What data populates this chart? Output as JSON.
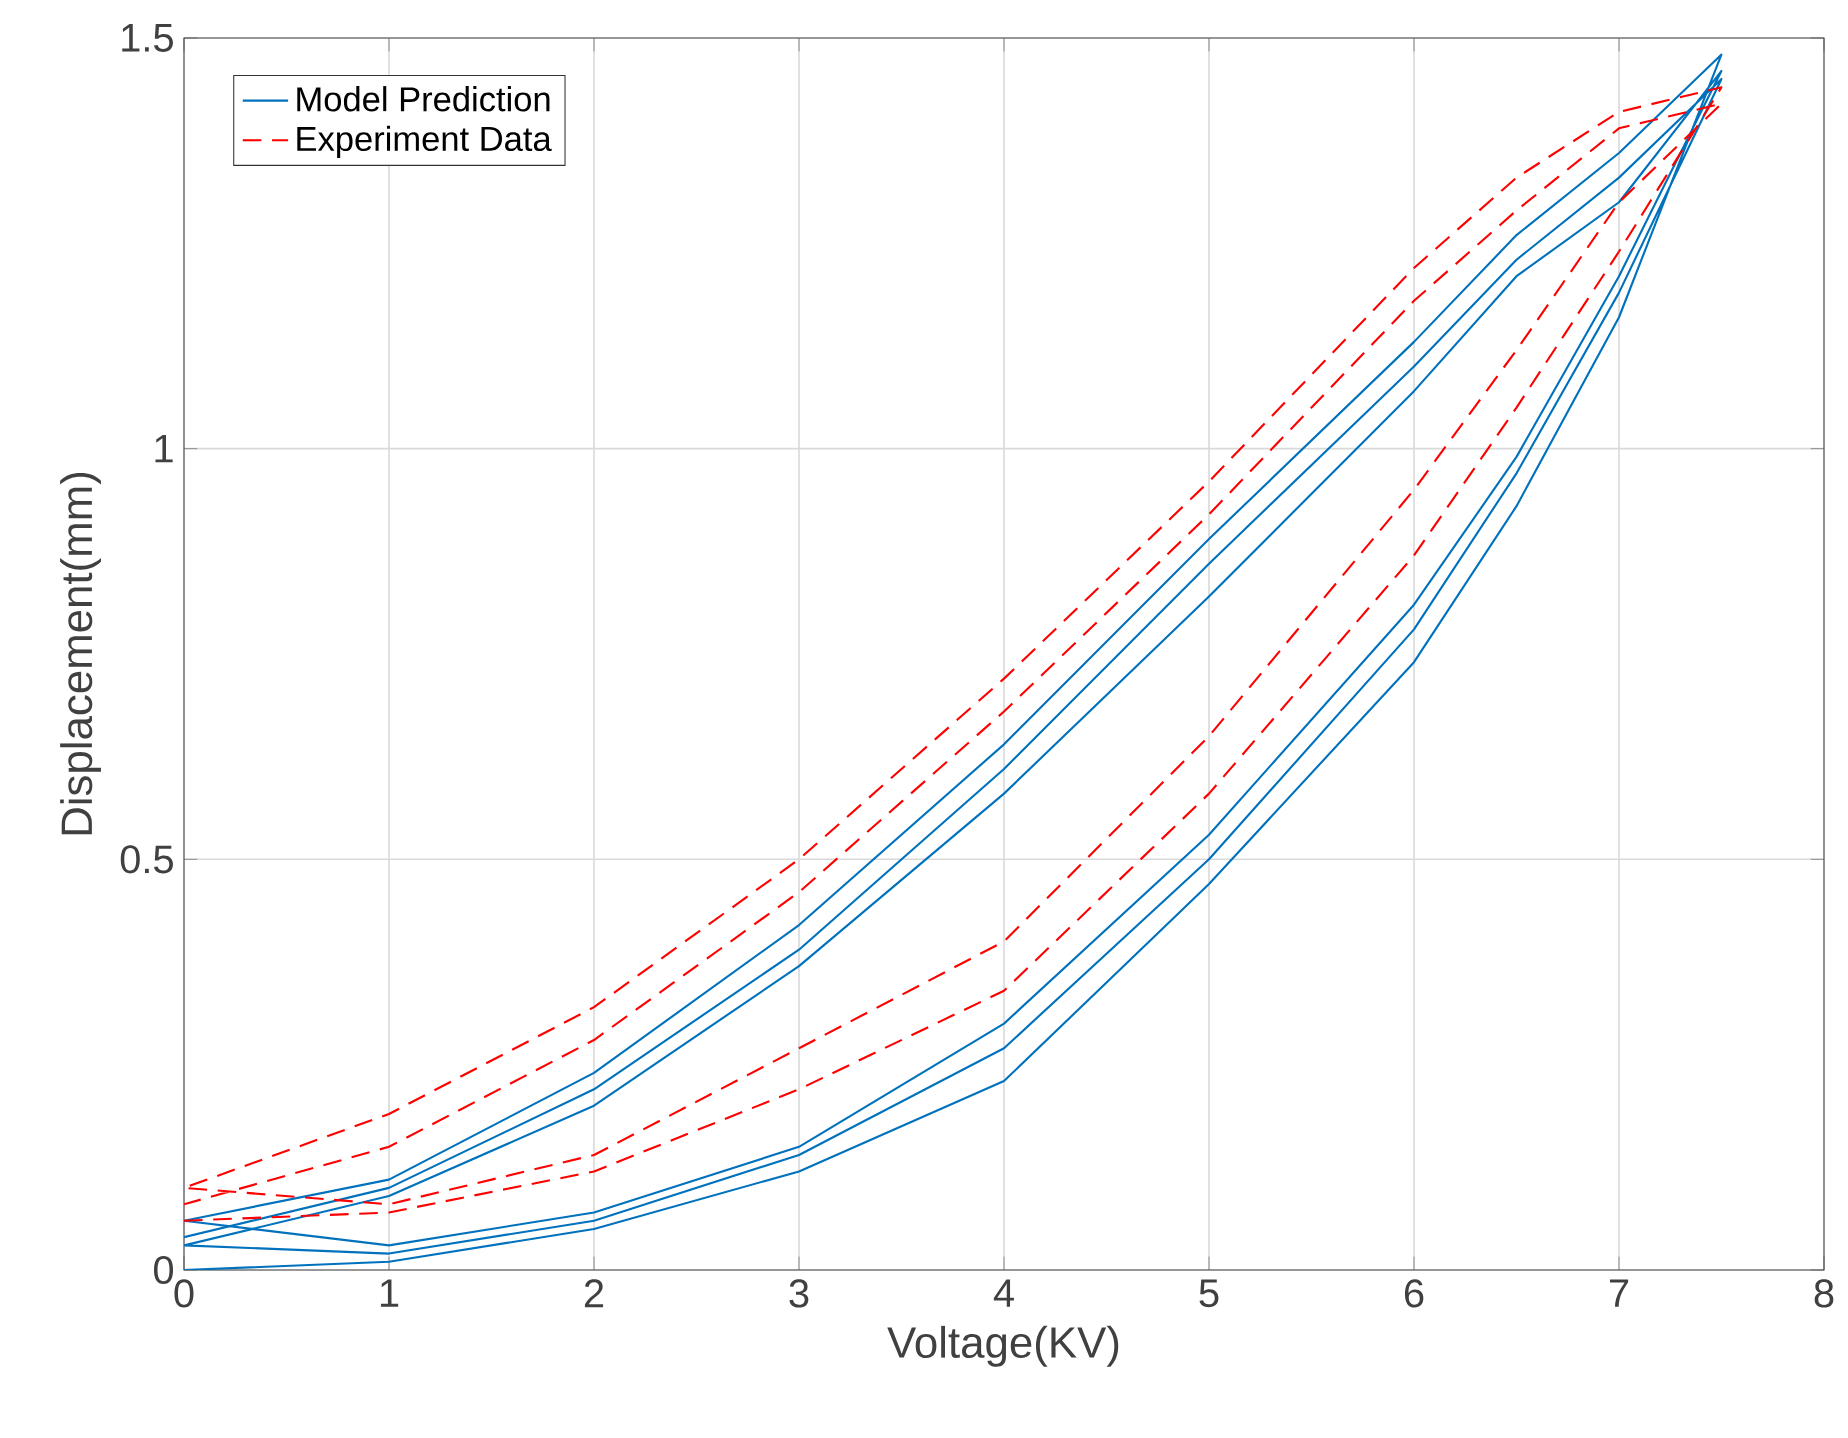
{
  "chart_data": {
    "type": "line",
    "xlabel": "Voltage(KV)",
    "ylabel": "Displacement(mm)",
    "xlim": [
      0,
      8
    ],
    "ylim": [
      0,
      1.5
    ],
    "xticks": [
      0,
      1,
      2,
      3,
      4,
      5,
      6,
      7,
      8
    ],
    "yticks": [
      0,
      0.5,
      1,
      1.5
    ],
    "grid": true,
    "legend": "top left",
    "series": [
      {
        "name": "Model Prediction",
        "color": "#0072bd",
        "line_style": "solid",
        "x": [
          0,
          1,
          2,
          3,
          4,
          5,
          6,
          6.5,
          7,
          7.5,
          7,
          6.5,
          6,
          5,
          4,
          3,
          2,
          1,
          0,
          1,
          2,
          3,
          4,
          5,
          6,
          6.5,
          7,
          7.5,
          7,
          6.5,
          6,
          5,
          4,
          3,
          2,
          1,
          0,
          1,
          2,
          3,
          4,
          5,
          6,
          6.5,
          7,
          7.5,
          7,
          6.5,
          6,
          5,
          4,
          3,
          2,
          1,
          0
        ],
        "values": [
          0,
          0.01,
          0.05,
          0.12,
          0.23,
          0.47,
          0.74,
          0.93,
          1.16,
          1.48,
          1.36,
          1.26,
          1.13,
          0.89,
          0.64,
          0.42,
          0.24,
          0.11,
          0.06,
          0.03,
          0.07,
          0.15,
          0.3,
          0.53,
          0.81,
          0.99,
          1.21,
          1.46,
          1.3,
          1.21,
          1.07,
          0.82,
          0.58,
          0.37,
          0.2,
          0.09,
          0.03,
          0.02,
          0.06,
          0.14,
          0.27,
          0.5,
          0.78,
          0.97,
          1.19,
          1.45,
          1.33,
          1.23,
          1.1,
          0.86,
          0.61,
          0.39,
          0.22,
          0.1,
          0.04
        ]
      },
      {
        "name": "Experiment Data",
        "color": "#ff0000",
        "line_style": "dashed",
        "x": [
          0,
          1,
          2,
          3,
          4,
          5,
          6,
          6.5,
          7,
          7.5,
          7,
          6.5,
          6,
          5,
          4,
          3,
          2,
          1,
          0,
          1,
          2,
          3,
          4,
          5,
          6,
          6.5,
          7,
          7.5,
          7,
          6.5,
          6,
          5,
          4,
          3,
          2,
          1,
          0
        ],
        "values": [
          0.06,
          0.07,
          0.12,
          0.22,
          0.34,
          0.58,
          0.87,
          1.05,
          1.24,
          1.44,
          1.41,
          1.33,
          1.22,
          0.96,
          0.72,
          0.5,
          0.32,
          0.19,
          0.1,
          0.08,
          0.14,
          0.27,
          0.4,
          0.65,
          0.95,
          1.12,
          1.3,
          1.42,
          1.39,
          1.29,
          1.18,
          0.92,
          0.68,
          0.46,
          0.28,
          0.15,
          0.08
        ]
      }
    ]
  }
}
